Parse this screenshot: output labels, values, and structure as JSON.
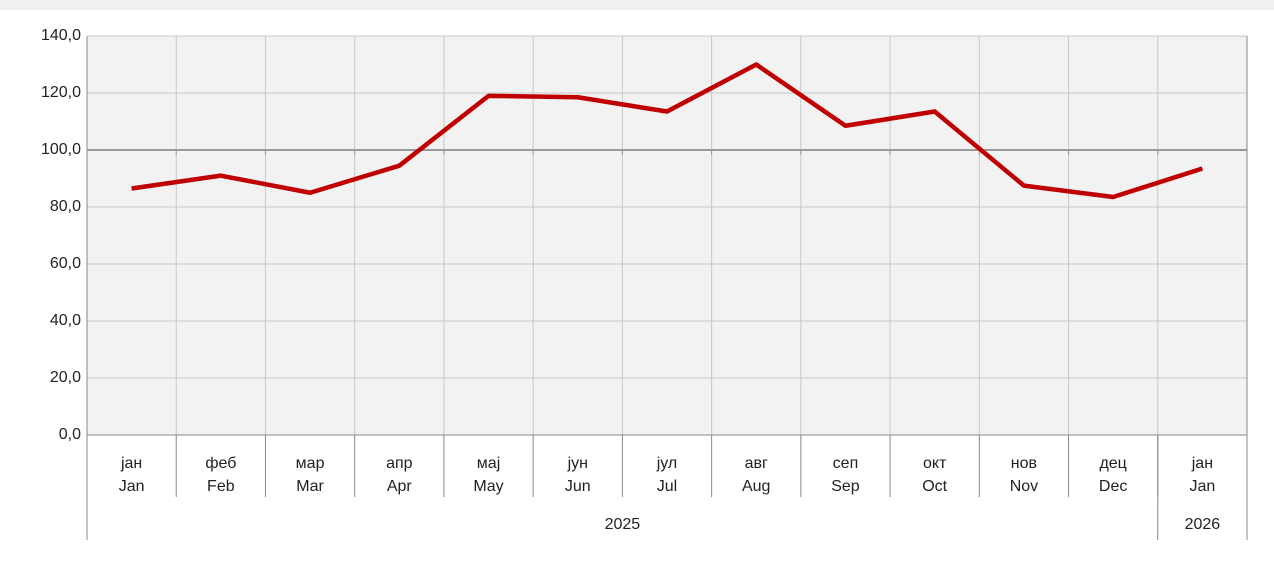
{
  "chart_data": {
    "type": "line",
    "categories": [
      [
        "јан",
        "Jan"
      ],
      [
        "феб",
        "Feb"
      ],
      [
        "мар",
        "Mar"
      ],
      [
        "апр",
        "Apr"
      ],
      [
        "мај",
        "May"
      ],
      [
        "јун",
        "Jun"
      ],
      [
        "јул",
        "Jul"
      ],
      [
        "авг",
        "Aug"
      ],
      [
        "сеп",
        "Sep"
      ],
      [
        "окт",
        "Oct"
      ],
      [
        "нов",
        "Nov"
      ],
      [
        "дец",
        "Dec"
      ],
      [
        "јан",
        "Jan"
      ]
    ],
    "groups": [
      {
        "label": "2025",
        "span": 12
      },
      {
        "label": "2026",
        "span": 1
      }
    ],
    "series": [
      {
        "color": "#c00000",
        "values": [
          86.5,
          91,
          85,
          94.5,
          119,
          118.5,
          113.5,
          130,
          108.5,
          113.5,
          87.5,
          83.5,
          93.5
        ]
      }
    ],
    "ylim": [
      0,
      140
    ],
    "yticks": [
      {
        "value": 0,
        "label": "0,0"
      },
      {
        "value": 20,
        "label": "20,0"
      },
      {
        "value": 40,
        "label": "40,0"
      },
      {
        "value": 60,
        "label": "60,0"
      },
      {
        "value": 80,
        "label": "80,0"
      },
      {
        "value": 100,
        "label": "100,0"
      },
      {
        "value": 120,
        "label": "120,0"
      },
      {
        "value": 140,
        "label": "140,0"
      }
    ],
    "reference_line": 100,
    "grid": true
  }
}
